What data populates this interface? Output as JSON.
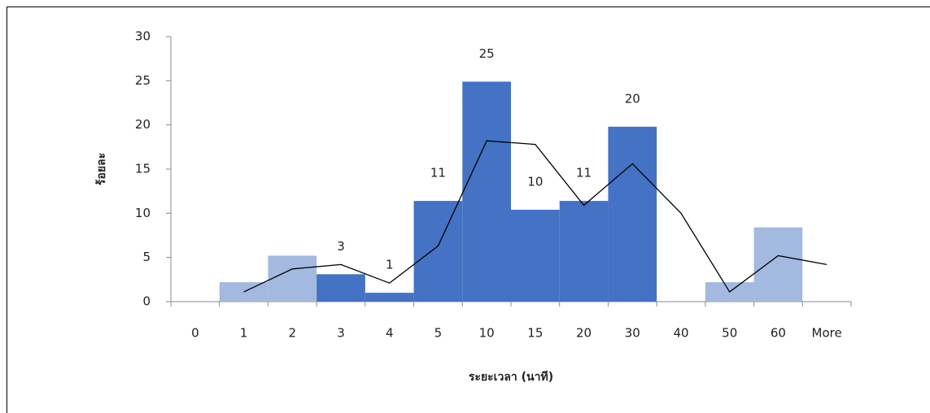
{
  "chart_data": {
    "type": "bar",
    "x_label": "ระยะเวลา (นาที)",
    "y_label": "ร้อยละ",
    "categories": [
      "0",
      "1",
      "2",
      "3",
      "4",
      "5",
      "10",
      "15",
      "20",
      "30",
      "40",
      "50",
      "60",
      "More"
    ],
    "series": [
      {
        "color": "#a3b9e0",
        "values": [
          null,
          2.2,
          5.2,
          null,
          null,
          null,
          null,
          null,
          null,
          null,
          null,
          2.2,
          8.4,
          null
        ]
      },
      {
        "color": "#4472c4",
        "values": [
          null,
          null,
          null,
          3.1,
          1.0,
          11.4,
          24.9,
          10.4,
          11.4,
          19.8,
          null,
          null,
          null,
          null
        ],
        "value_labels": [
          null,
          null,
          null,
          "3",
          "1",
          "11",
          "25",
          "10",
          "11",
          "20",
          null,
          null,
          null,
          null
        ]
      },
      {
        "type": "line",
        "color": "#000000",
        "values": [
          null,
          1.1,
          3.7,
          4.2,
          2.1,
          6.3,
          18.2,
          17.8,
          10.9,
          15.6,
          10.0,
          1.1,
          5.2,
          4.2
        ]
      }
    ],
    "ylim": [
      0,
      30
    ],
    "yticks": [
      0,
      5,
      10,
      15,
      20,
      25,
      30
    ]
  }
}
